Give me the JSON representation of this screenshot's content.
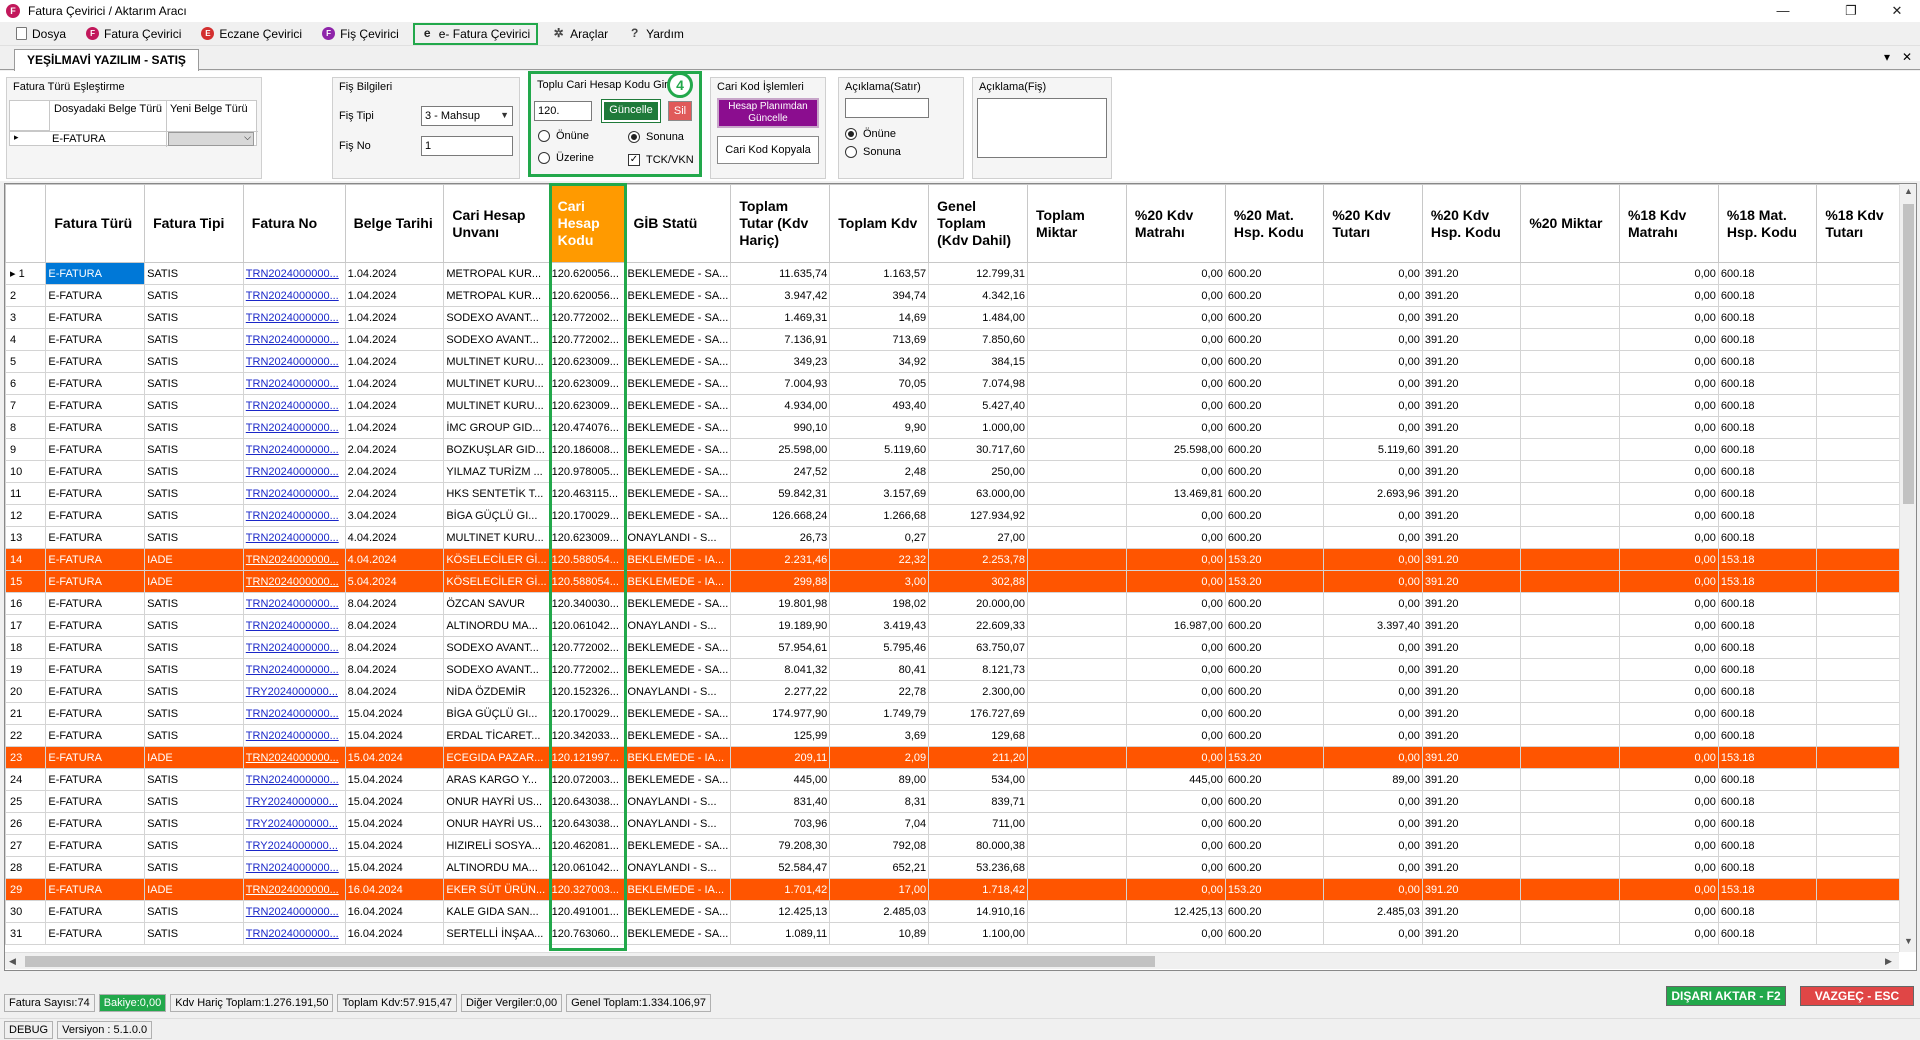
{
  "window": {
    "title": "Fatura Çevirici / Aktarım Aracı",
    "app_icon_letter": "F"
  },
  "menu": [
    {
      "label": "Dosya",
      "icon": "document-icon",
      "letter": "",
      "color": "#777777"
    },
    {
      "label": "Fatura Çevirici",
      "icon": "f-circle-icon",
      "letter": "F",
      "color": "#c2185b"
    },
    {
      "label": "Eczane Çevirici",
      "icon": "e-circle-icon",
      "letter": "E",
      "color": "#d32f2f"
    },
    {
      "label": "Fiş Çevirici",
      "icon": "f-purple-icon",
      "letter": "F",
      "color": "#8e24aa"
    },
    {
      "label": "e- Fatura Çevirici",
      "icon": "e-fatura-icon",
      "letter": "e",
      "color": "#222222",
      "active": true
    },
    {
      "label": "Araçlar",
      "icon": "tools-icon",
      "letter": "✲",
      "color": "#444444"
    },
    {
      "label": "Yardım",
      "icon": "help-icon",
      "letter": "?",
      "color": "#444444"
    }
  ],
  "doc_tab": "YEŞİLMAVİ YAZILIM - SATIŞ",
  "panel": {
    "fatura_turu": {
      "title": "Fatura Türü Eşleştirme",
      "col1": "Dosyadaki Belge Türü",
      "col2": "Yeni Belge Türü",
      "row_value": "E-FATURA",
      "row_indicator": "▸"
    },
    "fis_bilgileri": {
      "title": "Fiş Bilgileri",
      "tipi_label": "Fiş Tipi",
      "tipi_value": "3 - Mahsup",
      "no_label": "Fiş No",
      "no_value": "1"
    },
    "toplu": {
      "title": "Toplu Cari Hesap Kodu Gir",
      "input_value": "120.",
      "guncelle": "Güncelle",
      "sil": "Sil",
      "badge": "4",
      "onune": "Önüne",
      "sonuna": "Sonuna",
      "uzerine": "Üzerine",
      "tck": "TCK/VKN"
    },
    "cari_kod": {
      "title": "Cari Kod İşlemleri",
      "hesap_btn": "Hesap Planımdan Güncelle",
      "kopyala_btn": "Cari Kod Kopyala"
    },
    "aciklama_satir": {
      "title": "Açıklama(Satır)",
      "onune": "Önüne",
      "sonuna": "Sonuna"
    },
    "aciklama_fis": {
      "title": "Açıklama(Fiş)"
    }
  },
  "grid": {
    "columns": [
      "",
      "Fatura Türü",
      "Fatura Tipi",
      "Fatura No",
      "Belge Tarihi",
      "Cari Hesap Unvanı",
      "Cari Hesap Kodu",
      "GİB Statü",
      "Toplam Tutar (Kdv Hariç)",
      "Toplam Kdv",
      "Genel Toplam (Kdv Dahil)",
      "Toplam Miktar",
      "%20 Kdv Matrahı",
      "%20 Mat. Hsp. Kodu",
      "%20 Kdv Tutarı",
      "%20 Kdv Hsp. Kodu",
      "%20 Miktar",
      "%18 Kdv Matrahı",
      "%18 Mat. Hsp. Kodu",
      "%18 Kdv Tutarı"
    ],
    "rows": [
      [
        "1",
        "E-FATURA",
        "SATIS",
        "TRN2024000000...",
        "1.04.2024",
        "METROPAL KUR...",
        "120.620056...",
        "BEKLEMEDE - SA...",
        "11.635,74",
        "1.163,57",
        "12.799,31",
        "",
        "0,00",
        "600.20",
        "0,00",
        "391.20",
        "",
        "0,00",
        "600.18",
        ""
      ],
      [
        "2",
        "E-FATURA",
        "SATIS",
        "TRN2024000000...",
        "1.04.2024",
        "METROPAL KUR...",
        "120.620056...",
        "BEKLEMEDE - SA...",
        "3.947,42",
        "394,74",
        "4.342,16",
        "",
        "0,00",
        "600.20",
        "0,00",
        "391.20",
        "",
        "0,00",
        "600.18",
        ""
      ],
      [
        "3",
        "E-FATURA",
        "SATIS",
        "TRN2024000000...",
        "1.04.2024",
        "SODEXO AVANT...",
        "120.772002...",
        "BEKLEMEDE - SA...",
        "1.469,31",
        "14,69",
        "1.484,00",
        "",
        "0,00",
        "600.20",
        "0,00",
        "391.20",
        "",
        "0,00",
        "600.18",
        ""
      ],
      [
        "4",
        "E-FATURA",
        "SATIS",
        "TRN2024000000...",
        "1.04.2024",
        "SODEXO AVANT...",
        "120.772002...",
        "BEKLEMEDE - SA...",
        "7.136,91",
        "713,69",
        "7.850,60",
        "",
        "0,00",
        "600.20",
        "0,00",
        "391.20",
        "",
        "0,00",
        "600.18",
        ""
      ],
      [
        "5",
        "E-FATURA",
        "SATIS",
        "TRN2024000000...",
        "1.04.2024",
        "MULTINET KURU...",
        "120.623009...",
        "BEKLEMEDE - SA...",
        "349,23",
        "34,92",
        "384,15",
        "",
        "0,00",
        "600.20",
        "0,00",
        "391.20",
        "",
        "0,00",
        "600.18",
        ""
      ],
      [
        "6",
        "E-FATURA",
        "SATIS",
        "TRN2024000000...",
        "1.04.2024",
        "MULTINET KURU...",
        "120.623009...",
        "BEKLEMEDE - SA...",
        "7.004,93",
        "70,05",
        "7.074,98",
        "",
        "0,00",
        "600.20",
        "0,00",
        "391.20",
        "",
        "0,00",
        "600.18",
        ""
      ],
      [
        "7",
        "E-FATURA",
        "SATIS",
        "TRN2024000000...",
        "1.04.2024",
        "MULTINET KURU...",
        "120.623009...",
        "BEKLEMEDE - SA...",
        "4.934,00",
        "493,40",
        "5.427,40",
        "",
        "0,00",
        "600.20",
        "0,00",
        "391.20",
        "",
        "0,00",
        "600.18",
        ""
      ],
      [
        "8",
        "E-FATURA",
        "SATIS",
        "TRN2024000000...",
        "1.04.2024",
        "İMC GROUP GID...",
        "120.474076...",
        "BEKLEMEDE - SA...",
        "990,10",
        "9,90",
        "1.000,00",
        "",
        "0,00",
        "600.20",
        "0,00",
        "391.20",
        "",
        "0,00",
        "600.18",
        ""
      ],
      [
        "9",
        "E-FATURA",
        "SATIS",
        "TRN2024000000...",
        "2.04.2024",
        "BOZKUŞLAR GID...",
        "120.186008...",
        "BEKLEMEDE - SA...",
        "25.598,00",
        "5.119,60",
        "30.717,60",
        "",
        "25.598,00",
        "600.20",
        "5.119,60",
        "391.20",
        "",
        "0,00",
        "600.18",
        ""
      ],
      [
        "10",
        "E-FATURA",
        "SATIS",
        "TRN2024000000...",
        "2.04.2024",
        "YILMAZ TURİZM ...",
        "120.978005...",
        "BEKLEMEDE - SA...",
        "247,52",
        "2,48",
        "250,00",
        "",
        "0,00",
        "600.20",
        "0,00",
        "391.20",
        "",
        "0,00",
        "600.18",
        ""
      ],
      [
        "11",
        "E-FATURA",
        "SATIS",
        "TRN2024000000...",
        "2.04.2024",
        "HKS SENTETİK T...",
        "120.463115...",
        "BEKLEMEDE - SA...",
        "59.842,31",
        "3.157,69",
        "63.000,00",
        "",
        "13.469,81",
        "600.20",
        "2.693,96",
        "391.20",
        "",
        "0,00",
        "600.18",
        ""
      ],
      [
        "12",
        "E-FATURA",
        "SATIS",
        "TRN2024000000...",
        "3.04.2024",
        "BİGA GÜÇLÜ GI...",
        "120.170029...",
        "BEKLEMEDE - SA...",
        "126.668,24",
        "1.266,68",
        "127.934,92",
        "",
        "0,00",
        "600.20",
        "0,00",
        "391.20",
        "",
        "0,00",
        "600.18",
        ""
      ],
      [
        "13",
        "E-FATURA",
        "SATIS",
        "TRN2024000000...",
        "4.04.2024",
        "MULTINET KURU...",
        "120.623009...",
        "ONAYLANDI - S...",
        "26,73",
        "0,27",
        "27,00",
        "",
        "0,00",
        "600.20",
        "0,00",
        "391.20",
        "",
        "0,00",
        "600.18",
        ""
      ],
      [
        "14",
        "E-FATURA",
        "IADE",
        "TRN2024000000...",
        "4.04.2024",
        "KÖSELECİLER Gİ...",
        "120.588054...",
        "BEKLEMEDE - IA...",
        "2.231,46",
        "22,32",
        "2.253,78",
        "",
        "0,00",
        "153.20",
        "0,00",
        "391.20",
        "",
        "0,00",
        "153.18",
        ""
      ],
      [
        "15",
        "E-FATURA",
        "IADE",
        "TRN2024000000...",
        "5.04.2024",
        "KÖSELECİLER Gİ...",
        "120.588054...",
        "BEKLEMEDE - IA...",
        "299,88",
        "3,00",
        "302,88",
        "",
        "0,00",
        "153.20",
        "0,00",
        "391.20",
        "",
        "0,00",
        "153.18",
        ""
      ],
      [
        "16",
        "E-FATURA",
        "SATIS",
        "TRN2024000000...",
        "8.04.2024",
        "ÖZCAN SAVUR",
        "120.340030...",
        "BEKLEMEDE - SA...",
        "19.801,98",
        "198,02",
        "20.000,00",
        "",
        "0,00",
        "600.20",
        "0,00",
        "391.20",
        "",
        "0,00",
        "600.18",
        ""
      ],
      [
        "17",
        "E-FATURA",
        "SATIS",
        "TRN2024000000...",
        "8.04.2024",
        "ALTINORDU MA...",
        "120.061042...",
        "ONAYLANDI - S...",
        "19.189,90",
        "3.419,43",
        "22.609,33",
        "",
        "16.987,00",
        "600.20",
        "3.397,40",
        "391.20",
        "",
        "0,00",
        "600.18",
        ""
      ],
      [
        "18",
        "E-FATURA",
        "SATIS",
        "TRN2024000000...",
        "8.04.2024",
        "SODEXO AVANT...",
        "120.772002...",
        "BEKLEMEDE - SA...",
        "57.954,61",
        "5.795,46",
        "63.750,07",
        "",
        "0,00",
        "600.20",
        "0,00",
        "391.20",
        "",
        "0,00",
        "600.18",
        ""
      ],
      [
        "19",
        "E-FATURA",
        "SATIS",
        "TRN2024000000...",
        "8.04.2024",
        "SODEXO AVANT...",
        "120.772002...",
        "BEKLEMEDE - SA...",
        "8.041,32",
        "80,41",
        "8.121,73",
        "",
        "0,00",
        "600.20",
        "0,00",
        "391.20",
        "",
        "0,00",
        "600.18",
        ""
      ],
      [
        "20",
        "E-FATURA",
        "SATIS",
        "TRY2024000000...",
        "8.04.2024",
        "NİDA ÖZDEMİR",
        "120.152326...",
        "ONAYLANDI - S...",
        "2.277,22",
        "22,78",
        "2.300,00",
        "",
        "0,00",
        "600.20",
        "0,00",
        "391.20",
        "",
        "0,00",
        "600.18",
        ""
      ],
      [
        "21",
        "E-FATURA",
        "SATIS",
        "TRN2024000000...",
        "15.04.2024",
        "BİGA GÜÇLÜ GI...",
        "120.170029...",
        "BEKLEMEDE - SA...",
        "174.977,90",
        "1.749,79",
        "176.727,69",
        "",
        "0,00",
        "600.20",
        "0,00",
        "391.20",
        "",
        "0,00",
        "600.18",
        ""
      ],
      [
        "22",
        "E-FATURA",
        "SATIS",
        "TRN2024000000...",
        "15.04.2024",
        "ERDAL TİCARET...",
        "120.342033...",
        "BEKLEMEDE - SA...",
        "125,99",
        "3,69",
        "129,68",
        "",
        "0,00",
        "600.20",
        "0,00",
        "391.20",
        "",
        "0,00",
        "600.18",
        ""
      ],
      [
        "23",
        "E-FATURA",
        "IADE",
        "TRN2024000000...",
        "15.04.2024",
        "ECEGIDA PAZAR...",
        "120.121997...",
        "BEKLEMEDE - IA...",
        "209,11",
        "2,09",
        "211,20",
        "",
        "0,00",
        "153.20",
        "0,00",
        "391.20",
        "",
        "0,00",
        "153.18",
        ""
      ],
      [
        "24",
        "E-FATURA",
        "SATIS",
        "TRN2024000000...",
        "15.04.2024",
        "ARAS KARGO Y...",
        "120.072003...",
        "BEKLEMEDE - SA...",
        "445,00",
        "89,00",
        "534,00",
        "",
        "445,00",
        "600.20",
        "89,00",
        "391.20",
        "",
        "0,00",
        "600.18",
        ""
      ],
      [
        "25",
        "E-FATURA",
        "SATIS",
        "TRY2024000000...",
        "15.04.2024",
        "ONUR HAYRİ US...",
        "120.643038...",
        "ONAYLANDI - S...",
        "831,40",
        "8,31",
        "839,71",
        "",
        "0,00",
        "600.20",
        "0,00",
        "391.20",
        "",
        "0,00",
        "600.18",
        ""
      ],
      [
        "26",
        "E-FATURA",
        "SATIS",
        "TRY2024000000...",
        "15.04.2024",
        "ONUR HAYRİ US...",
        "120.643038...",
        "ONAYLANDI - S...",
        "703,96",
        "7,04",
        "711,00",
        "",
        "0,00",
        "600.20",
        "0,00",
        "391.20",
        "",
        "0,00",
        "600.18",
        ""
      ],
      [
        "27",
        "E-FATURA",
        "SATIS",
        "TRY2024000000...",
        "15.04.2024",
        "HIZIRELİ SOSYA...",
        "120.462081...",
        "BEKLEMEDE - SA...",
        "79.208,30",
        "792,08",
        "80.000,38",
        "",
        "0,00",
        "600.20",
        "0,00",
        "391.20",
        "",
        "0,00",
        "600.18",
        ""
      ],
      [
        "28",
        "E-FATURA",
        "SATIS",
        "TRN2024000000...",
        "15.04.2024",
        "ALTINORDU MA...",
        "120.061042...",
        "ONAYLANDI - S...",
        "52.584,47",
        "652,21",
        "53.236,68",
        "",
        "0,00",
        "600.20",
        "0,00",
        "391.20",
        "",
        "0,00",
        "600.18",
        ""
      ],
      [
        "29",
        "E-FATURA",
        "IADE",
        "TRN2024000000...",
        "16.04.2024",
        "EKER SÜT ÜRÜN...",
        "120.327003...",
        "BEKLEMEDE - IA...",
        "1.701,42",
        "17,00",
        "1.718,42",
        "",
        "0,00",
        "153.20",
        "0,00",
        "391.20",
        "",
        "0,00",
        "153.18",
        ""
      ],
      [
        "30",
        "E-FATURA",
        "SATIS",
        "TRN2024000000...",
        "16.04.2024",
        "KALE GIDA SAN...",
        "120.491001...",
        "BEKLEMEDE - SA...",
        "12.425,13",
        "2.485,03",
        "14.910,16",
        "",
        "12.425,13",
        "600.20",
        "2.485,03",
        "391.20",
        "",
        "0,00",
        "600.18",
        ""
      ],
      [
        "31",
        "E-FATURA",
        "SATIS",
        "TRN2024000000...",
        "16.04.2024",
        "SERTELLİ İNŞAA...",
        "120.763060...",
        "BEKLEMEDE - SA...",
        "1.089,11",
        "10,89",
        "1.100,00",
        "",
        "0,00",
        "600.20",
        "0,00",
        "391.20",
        "",
        "0,00",
        "600.18",
        ""
      ]
    ]
  },
  "status": {
    "fatura_sayisi": "Fatura Sayısı:74",
    "bakiye": "Bakiye:0,00",
    "kdv_haric": "Kdv Hariç Toplam:1.276.191,50",
    "toplam_kdv": "Toplam Kdv:57.915,47",
    "diger": "Diğer Vergiler:0,00",
    "genel": "Genel Toplam:1.334.106,97",
    "disari_aktar": "DIŞARI AKTAR - F2",
    "vazgec": "VAZGEÇ - ESC",
    "debug": "DEBUG",
    "version": "Versiyon : 5.1.0.0"
  },
  "colors": {
    "iade_row": "#ff5500",
    "highlight": "#22a84b",
    "header_highlight": "#ff9a00",
    "export_btn": "#22a84b",
    "cancel_btn": "#e04646"
  }
}
